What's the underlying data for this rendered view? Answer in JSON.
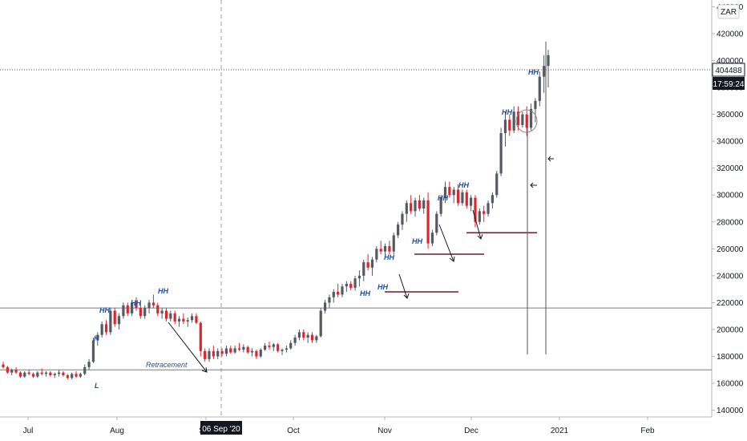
{
  "chart_data": {
    "type": "candlestick",
    "currency": "ZAR",
    "ylim": [
      135000,
      445000
    ],
    "y_ticks": [
      "440000",
      "420000",
      "400000",
      "380000",
      "360000",
      "340000",
      "320000",
      "300000",
      "280000",
      "260000",
      "240000",
      "220000",
      "200000",
      "180000",
      "160000",
      "140000"
    ],
    "x_ticks": [
      "Jul",
      "Aug",
      "Sep",
      "Oct",
      "Nov",
      "Dec",
      "2021",
      "Feb"
    ],
    "last_price": "404488",
    "countdown": "17:59:24",
    "crosshair_date": "06 Sep '20",
    "colors": {
      "up": "#535a63",
      "down": "#e0242c",
      "support": "#6b1f2b",
      "axis_text": "#131722",
      "annotation": "#1f4e9c",
      "price_tag": "#131722"
    },
    "horizontal_levels": [
      216000,
      170000
    ],
    "support_levels": [
      228000,
      256000,
      272000
    ],
    "annotations": [
      "HH",
      "HH",
      "HH",
      "HH",
      "HH",
      "HH",
      "HH",
      "HH",
      "HH",
      "HH",
      "HH",
      "H",
      "L",
      "Retracement"
    ],
    "candles": [
      [
        174000,
        176000,
        171000,
        172000
      ],
      [
        172000,
        173000,
        167000,
        168000
      ],
      [
        168000,
        171000,
        166000,
        170000
      ],
      [
        170000,
        172000,
        167000,
        168000
      ],
      [
        168000,
        169000,
        164000,
        165000
      ],
      [
        165000,
        169000,
        164000,
        168000
      ],
      [
        168000,
        170000,
        166000,
        167000
      ],
      [
        167000,
        168000,
        164000,
        165000
      ],
      [
        165000,
        169000,
        164000,
        168000
      ],
      [
        168000,
        171000,
        166000,
        167000
      ],
      [
        167000,
        169000,
        165000,
        168000
      ],
      [
        168000,
        169000,
        165000,
        166000
      ],
      [
        166000,
        168000,
        164000,
        167000
      ],
      [
        167000,
        170000,
        165000,
        168000
      ],
      [
        168000,
        169000,
        165000,
        166000
      ],
      [
        166000,
        167000,
        163000,
        164000
      ],
      [
        164000,
        168000,
        163000,
        167000
      ],
      [
        167000,
        169000,
        164000,
        165000
      ],
      [
        165000,
        168000,
        164000,
        167000
      ],
      [
        167000,
        174000,
        166000,
        172000
      ],
      [
        172000,
        178000,
        170000,
        176000
      ],
      [
        176000,
        194000,
        175000,
        192000
      ],
      [
        192000,
        198000,
        188000,
        196000
      ],
      [
        196000,
        206000,
        194000,
        204000
      ],
      [
        204000,
        207000,
        196000,
        198000
      ],
      [
        198000,
        216000,
        196000,
        214000
      ],
      [
        214000,
        216000,
        202000,
        204000
      ],
      [
        204000,
        212000,
        200000,
        210000
      ],
      [
        210000,
        220000,
        208000,
        218000
      ],
      [
        218000,
        220000,
        210000,
        212000
      ],
      [
        212000,
        222000,
        210000,
        220000
      ],
      [
        220000,
        224000,
        214000,
        216000
      ],
      [
        216000,
        220000,
        208000,
        210000
      ],
      [
        210000,
        218000,
        208000,
        216000
      ],
      [
        216000,
        222000,
        212000,
        220000
      ],
      [
        220000,
        226000,
        216000,
        218000
      ],
      [
        218000,
        220000,
        210000,
        212000
      ],
      [
        212000,
        216000,
        208000,
        214000
      ],
      [
        214000,
        216000,
        206000,
        208000
      ],
      [
        208000,
        214000,
        206000,
        212000
      ],
      [
        212000,
        214000,
        204000,
        206000
      ],
      [
        206000,
        210000,
        202000,
        208000
      ],
      [
        208000,
        212000,
        204000,
        206000
      ],
      [
        206000,
        209000,
        202000,
        207000
      ],
      [
        207000,
        212000,
        205000,
        210000
      ],
      [
        210000,
        212000,
        204000,
        205000
      ],
      [
        205000,
        206000,
        180000,
        184000
      ],
      [
        184000,
        186000,
        176000,
        178000
      ],
      [
        178000,
        186000,
        176000,
        184000
      ],
      [
        184000,
        188000,
        178000,
        180000
      ],
      [
        180000,
        186000,
        178000,
        184000
      ],
      [
        184000,
        186000,
        180000,
        182000
      ],
      [
        182000,
        188000,
        180000,
        186000
      ],
      [
        186000,
        188000,
        182000,
        183000
      ],
      [
        183000,
        188000,
        182000,
        186000
      ],
      [
        186000,
        190000,
        184000,
        185000
      ],
      [
        185000,
        189000,
        183000,
        187000
      ],
      [
        187000,
        188000,
        182000,
        183000
      ],
      [
        183000,
        186000,
        180000,
        184000
      ],
      [
        184000,
        185000,
        178000,
        180000
      ],
      [
        180000,
        186000,
        179000,
        185000
      ],
      [
        185000,
        190000,
        184000,
        188000
      ],
      [
        188000,
        191000,
        185000,
        187000
      ],
      [
        187000,
        190000,
        184000,
        189000
      ],
      [
        189000,
        190000,
        183000,
        184000
      ],
      [
        184000,
        186000,
        181000,
        185000
      ],
      [
        185000,
        188000,
        183000,
        186000
      ],
      [
        186000,
        192000,
        185000,
        190000
      ],
      [
        190000,
        196000,
        188000,
        194000
      ],
      [
        194000,
        200000,
        192000,
        198000
      ],
      [
        198000,
        200000,
        192000,
        194000
      ],
      [
        194000,
        198000,
        190000,
        196000
      ],
      [
        196000,
        198000,
        190000,
        192000
      ],
      [
        192000,
        196000,
        190000,
        195000
      ],
      [
        195000,
        216000,
        194000,
        214000
      ],
      [
        214000,
        222000,
        212000,
        220000
      ],
      [
        220000,
        226000,
        216000,
        224000
      ],
      [
        224000,
        230000,
        220000,
        228000
      ],
      [
        228000,
        234000,
        224000,
        226000
      ],
      [
        226000,
        234000,
        224000,
        232000
      ],
      [
        232000,
        236000,
        228000,
        234000
      ],
      [
        234000,
        236000,
        229000,
        231000
      ],
      [
        231000,
        240000,
        229000,
        238000
      ],
      [
        238000,
        244000,
        232000,
        240000
      ],
      [
        240000,
        252000,
        236000,
        250000
      ],
      [
        250000,
        256000,
        244000,
        246000
      ],
      [
        246000,
        254000,
        240000,
        252000
      ],
      [
        252000,
        262000,
        250000,
        260000
      ],
      [
        260000,
        266000,
        256000,
        258000
      ],
      [
        258000,
        264000,
        254000,
        262000
      ],
      [
        262000,
        266000,
        256000,
        258000
      ],
      [
        258000,
        272000,
        256000,
        270000
      ],
      [
        270000,
        280000,
        268000,
        278000
      ],
      [
        278000,
        288000,
        274000,
        286000
      ],
      [
        286000,
        296000,
        280000,
        294000
      ],
      [
        294000,
        300000,
        286000,
        288000
      ],
      [
        288000,
        298000,
        284000,
        296000
      ],
      [
        296000,
        300000,
        288000,
        290000
      ],
      [
        290000,
        298000,
        286000,
        296000
      ],
      [
        296000,
        302000,
        260000,
        264000
      ],
      [
        264000,
        274000,
        262000,
        272000
      ],
      [
        272000,
        288000,
        270000,
        286000
      ],
      [
        286000,
        300000,
        284000,
        298000
      ],
      [
        298000,
        310000,
        294000,
        306000
      ],
      [
        306000,
        310000,
        298000,
        300000
      ],
      [
        300000,
        306000,
        294000,
        304000
      ],
      [
        304000,
        308000,
        292000,
        294000
      ],
      [
        294000,
        304000,
        292000,
        302000
      ],
      [
        302000,
        304000,
        290000,
        292000
      ],
      [
        292000,
        300000,
        288000,
        298000
      ],
      [
        298000,
        300000,
        276000,
        280000
      ],
      [
        280000,
        290000,
        278000,
        288000
      ],
      [
        288000,
        292000,
        280000,
        286000
      ],
      [
        286000,
        296000,
        284000,
        294000
      ],
      [
        294000,
        302000,
        290000,
        300000
      ],
      [
        300000,
        318000,
        298000,
        316000
      ],
      [
        316000,
        350000,
        314000,
        346000
      ],
      [
        346000,
        362000,
        336000,
        356000
      ],
      [
        356000,
        360000,
        344000,
        348000
      ],
      [
        348000,
        366000,
        346000,
        362000
      ],
      [
        362000,
        366000,
        348000,
        352000
      ],
      [
        352000,
        362000,
        350000,
        360000
      ],
      [
        360000,
        366000,
        344000,
        350000
      ],
      [
        350000,
        368000,
        348000,
        364000
      ],
      [
        364000,
        372000,
        354000,
        370000
      ],
      [
        370000,
        392000,
        366000,
        388000
      ],
      [
        388000,
        404000,
        376000,
        396000
      ],
      [
        396000,
        408000,
        380000,
        404000
      ]
    ]
  }
}
